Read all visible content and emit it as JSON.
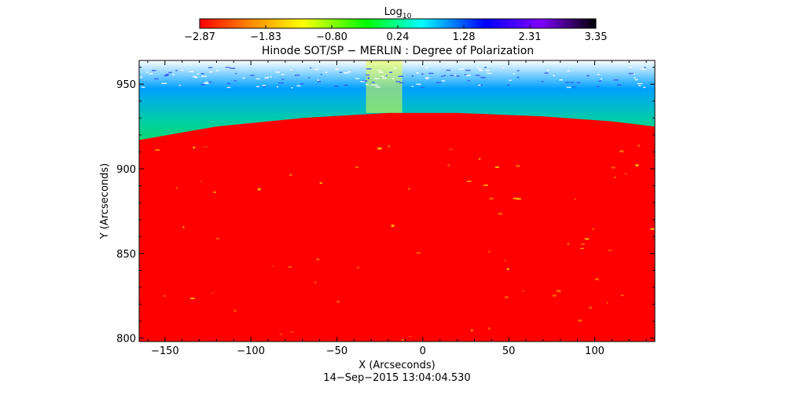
{
  "chart_data": {
    "type": "heatmap",
    "title": "Hinode SOT/SP − MERLIN : Degree of Polarization",
    "xlabel": "X (Arcseconds)",
    "ylabel": "Y (Arcseconds)",
    "date_label": "14−Sep−2015 13:04:04.530",
    "xlim": [
      -165,
      135
    ],
    "ylim": [
      798,
      964
    ],
    "x_ticks": [
      -150,
      -100,
      -50,
      0,
      50,
      100
    ],
    "y_ticks": [
      800,
      850,
      900,
      950
    ],
    "colorbar": {
      "label_base": "Log",
      "label_sub": "10",
      "range": [
        -2.87,
        3.35
      ],
      "ticks": [
        "−2.87",
        "−1.83",
        "−0.80",
        "0.24",
        "1.28",
        "2.31",
        "3.35"
      ]
    },
    "colors": {
      "disk": "#ff0000",
      "ramp": [
        "#ff0000",
        "#ff8000",
        "#ffff00",
        "#00ff00",
        "#00ffff",
        "#0000ff",
        "#8000ff",
        "#000000"
      ]
    },
    "limb_profile": [
      {
        "x": -165,
        "y": 917
      },
      {
        "x": -120,
        "y": 925
      },
      {
        "x": -70,
        "y": 930
      },
      {
        "x": -20,
        "y": 933
      },
      {
        "x": 20,
        "y": 933
      },
      {
        "x": 70,
        "y": 931
      },
      {
        "x": 110,
        "y": 928
      },
      {
        "x": 135,
        "y": 925
      }
    ]
  }
}
